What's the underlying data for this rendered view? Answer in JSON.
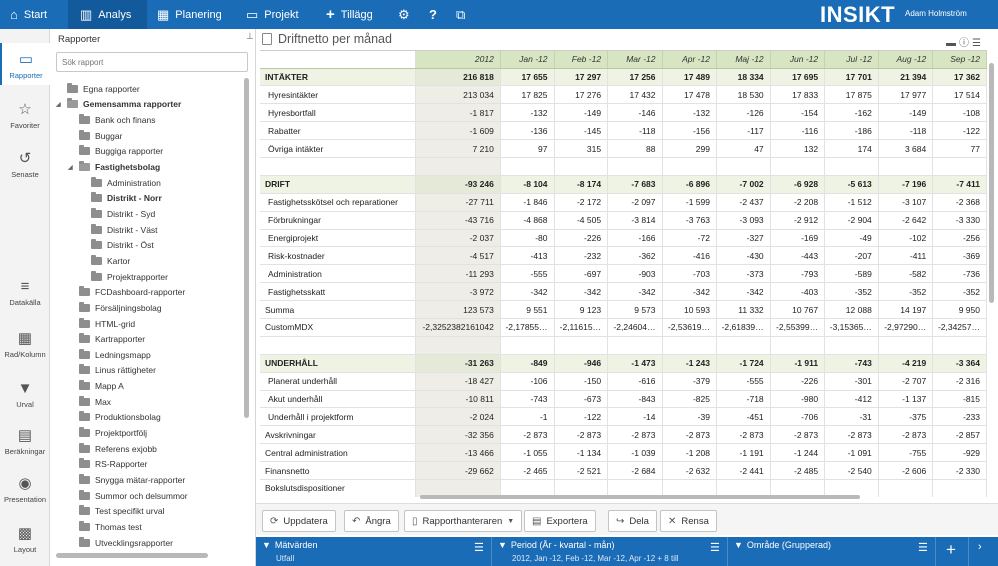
{
  "nav": {
    "start": "Start",
    "analys": "Analys",
    "planering": "Planering",
    "projekt": "Projekt",
    "tillagg": "Tillägg",
    "logo": "INSIKT",
    "user": "Adam Holmström"
  },
  "rail": {
    "rapporter": "Rapporter",
    "favoriter": "Favoriter",
    "senaste": "Senaste",
    "datakalla": "Datakälla",
    "rad_kolumn": "Rad/Kolumn",
    "urval": "Urval",
    "berakningar": "Beräkningar",
    "presentation": "Presentation",
    "layout": "Layout"
  },
  "tree": {
    "title": "Rapporter",
    "search_placeholder": "Sök rapport",
    "items": [
      {
        "label": "Egna rapporter",
        "level": 1,
        "bold": false,
        "open": false
      },
      {
        "label": "Gemensamma rapporter",
        "level": 1,
        "bold": true,
        "open": true
      },
      {
        "label": "Bank och finans",
        "level": 2,
        "bold": false,
        "open": false
      },
      {
        "label": "Buggar",
        "level": 2,
        "bold": false,
        "open": false
      },
      {
        "label": "Buggiga rapporter",
        "level": 2,
        "bold": false,
        "open": false
      },
      {
        "label": "Fastighetsbolag",
        "level": 2,
        "bold": true,
        "open": true
      },
      {
        "label": "Administration",
        "level": 3,
        "bold": false,
        "open": false
      },
      {
        "label": "Distrikt - Norr",
        "level": 3,
        "bold": true,
        "open": false
      },
      {
        "label": "Distrikt - Syd",
        "level": 3,
        "bold": false,
        "open": false
      },
      {
        "label": "Distrikt - Väst",
        "level": 3,
        "bold": false,
        "open": false
      },
      {
        "label": "Distrikt - Öst",
        "level": 3,
        "bold": false,
        "open": false
      },
      {
        "label": "Kartor",
        "level": 3,
        "bold": false,
        "open": false
      },
      {
        "label": "Projektrapporter",
        "level": 3,
        "bold": false,
        "open": false
      },
      {
        "label": "FCDashboard-rapporter",
        "level": 2,
        "bold": false,
        "open": false
      },
      {
        "label": "Försäljningsbolag",
        "level": 2,
        "bold": false,
        "open": false
      },
      {
        "label": "HTML-grid",
        "level": 2,
        "bold": false,
        "open": false
      },
      {
        "label": "Kartrapporter",
        "level": 2,
        "bold": false,
        "open": false
      },
      {
        "label": "Ledningsmapp",
        "level": 2,
        "bold": false,
        "open": false
      },
      {
        "label": "Linus rättigheter",
        "level": 2,
        "bold": false,
        "open": false
      },
      {
        "label": "Mapp A",
        "level": 2,
        "bold": false,
        "open": false
      },
      {
        "label": "Max",
        "level": 2,
        "bold": false,
        "open": false
      },
      {
        "label": "Produktionsbolag",
        "level": 2,
        "bold": false,
        "open": false
      },
      {
        "label": "Projektportfölj",
        "level": 2,
        "bold": false,
        "open": false
      },
      {
        "label": "Referens exjobb",
        "level": 2,
        "bold": false,
        "open": false
      },
      {
        "label": "RS-Rapporter",
        "level": 2,
        "bold": false,
        "open": false
      },
      {
        "label": "Snygga mätar-rapporter",
        "level": 2,
        "bold": false,
        "open": false
      },
      {
        "label": "Summor och delsummor",
        "level": 2,
        "bold": false,
        "open": false
      },
      {
        "label": "Test specifikt urval",
        "level": 2,
        "bold": false,
        "open": false
      },
      {
        "label": "Thomas test",
        "level": 2,
        "bold": false,
        "open": false
      },
      {
        "label": "Utvecklingsrapporter",
        "level": 2,
        "bold": false,
        "open": false
      }
    ]
  },
  "report": {
    "title": "Driftnetto per månad",
    "columns": [
      "2012",
      "Jan -12",
      "Feb -12",
      "Mar -12",
      "Apr -12",
      "Maj -12",
      "Jun -12",
      "Jul -12",
      "Aug -12",
      "Sep -12"
    ],
    "rows": [
      {
        "label": "INTÄKTER",
        "type": "section",
        "values": [
          "216 818",
          "17 655",
          "17 297",
          "17 256",
          "17 489",
          "18 334",
          "17 695",
          "17 701",
          "21 394",
          "17 362"
        ]
      },
      {
        "label": "Hyresintäkter",
        "type": "item",
        "values": [
          "213 034",
          "17 825",
          "17 276",
          "17 432",
          "17 478",
          "18 530",
          "17 833",
          "17 875",
          "17 977",
          "17 514"
        ]
      },
      {
        "label": "Hyresbortfall",
        "type": "item",
        "values": [
          "-1 817",
          "-132",
          "-149",
          "-146",
          "-132",
          "-126",
          "-154",
          "-162",
          "-149",
          "-108"
        ]
      },
      {
        "label": "Rabatter",
        "type": "item",
        "values": [
          "-1 609",
          "-136",
          "-145",
          "-118",
          "-156",
          "-117",
          "-116",
          "-186",
          "-118",
          "-122"
        ]
      },
      {
        "label": "Övriga intäkter",
        "type": "item",
        "values": [
          "7 210",
          "97",
          "315",
          "88",
          "299",
          "47",
          "132",
          "174",
          "3 684",
          "77"
        ]
      },
      {
        "label": "",
        "type": "empty",
        "values": [
          "",
          "",
          "",
          "",
          "",
          "",
          "",
          "",
          "",
          ""
        ]
      },
      {
        "label": "DRIFT",
        "type": "section",
        "values": [
          "-93 246",
          "-8 104",
          "-8 174",
          "-7 683",
          "-6 896",
          "-7 002",
          "-6 928",
          "-5 613",
          "-7 196",
          "-7 411"
        ]
      },
      {
        "label": "Fastighetsskötsel och reparationer",
        "type": "item",
        "values": [
          "-27 711",
          "-1 846",
          "-2 172",
          "-2 097",
          "-1 599",
          "-2 437",
          "-2 208",
          "-1 512",
          "-3 107",
          "-2 368"
        ]
      },
      {
        "label": "Förbrukningar",
        "type": "item",
        "values": [
          "-43 716",
          "-4 868",
          "-4 505",
          "-3 814",
          "-3 763",
          "-3 093",
          "-2 912",
          "-2 904",
          "-2 642",
          "-3 330"
        ]
      },
      {
        "label": "Energiprojekt",
        "type": "item",
        "values": [
          "-2 037",
          "-80",
          "-226",
          "-166",
          "-72",
          "-327",
          "-169",
          "-49",
          "-102",
          "-256"
        ]
      },
      {
        "label": "Risk-kostnader",
        "type": "item",
        "values": [
          "-4 517",
          "-413",
          "-232",
          "-362",
          "-416",
          "-430",
          "-443",
          "-207",
          "-411",
          "-369"
        ]
      },
      {
        "label": "Administration",
        "type": "item",
        "values": [
          "-11 293",
          "-555",
          "-697",
          "-903",
          "-703",
          "-373",
          "-793",
          "-589",
          "-582",
          "-736"
        ]
      },
      {
        "label": "Fastighetsskatt",
        "type": "item",
        "values": [
          "-3 972",
          "-342",
          "-342",
          "-342",
          "-342",
          "-342",
          "-403",
          "-352",
          "-352",
          "-352"
        ]
      },
      {
        "label": "Summa",
        "type": "total",
        "values": [
          "123 573",
          "9 551",
          "9 123",
          "9 573",
          "10 593",
          "11 332",
          "10 767",
          "12 088",
          "14 197",
          "9 950"
        ]
      },
      {
        "label": "CustomMDX",
        "type": "total",
        "values": [
          "-2,3252382161042",
          "-2,17855…",
          "-2,11615…",
          "-2,24604…",
          "-2,53619…",
          "-2,61839…",
          "-2,55399…",
          "-3,15365…",
          "-2,97290…",
          "-2,34257…"
        ]
      },
      {
        "label": "",
        "type": "empty",
        "values": [
          "",
          "",
          "",
          "",
          "",
          "",
          "",
          "",
          "",
          ""
        ]
      },
      {
        "label": "UNDERHÅLL",
        "type": "section",
        "values": [
          "-31 263",
          "-849",
          "-946",
          "-1 473",
          "-1 243",
          "-1 724",
          "-1 911",
          "-743",
          "-4 219",
          "-3 364"
        ]
      },
      {
        "label": "Planerat underhåll",
        "type": "item",
        "values": [
          "-18 427",
          "-106",
          "-150",
          "-616",
          "-379",
          "-555",
          "-226",
          "-301",
          "-2 707",
          "-2 316"
        ]
      },
      {
        "label": "Akut underhåll",
        "type": "item",
        "values": [
          "-10 811",
          "-743",
          "-673",
          "-843",
          "-825",
          "-718",
          "-980",
          "-412",
          "-1 137",
          "-815"
        ]
      },
      {
        "label": "Underhåll i projektform",
        "type": "item",
        "values": [
          "-2 024",
          "-1",
          "-122",
          "-14",
          "-39",
          "-451",
          "-706",
          "-31",
          "-375",
          "-233"
        ]
      },
      {
        "label": "Avskrivningar",
        "type": "total",
        "values": [
          "-32 356",
          "-2 873",
          "-2 873",
          "-2 873",
          "-2 873",
          "-2 873",
          "-2 873",
          "-2 873",
          "-2 873",
          "-2 857"
        ]
      },
      {
        "label": "Central administration",
        "type": "total",
        "values": [
          "-13 466",
          "-1 055",
          "-1 134",
          "-1 039",
          "-1 208",
          "-1 191",
          "-1 244",
          "-1 091",
          "-755",
          "-929"
        ]
      },
      {
        "label": "Finansnetto",
        "type": "total",
        "values": [
          "-29 662",
          "-2 465",
          "-2 521",
          "-2 684",
          "-2 632",
          "-2 441",
          "-2 485",
          "-2 540",
          "-2 606",
          "-2 330"
        ]
      },
      {
        "label": "Bokslutsdispositioner",
        "type": "total",
        "values": [
          "",
          "",
          "",
          "",
          "",
          "",
          "",
          "",
          "",
          ""
        ]
      }
    ]
  },
  "toolbar": {
    "uppdatera": "Uppdatera",
    "angra": "Ångra",
    "rapporthanteraren": "Rapporthanteraren",
    "exportera": "Exportera",
    "dela": "Dela",
    "rensa": "Rensa"
  },
  "filters": {
    "matvarden_title": "Mätvärden",
    "matvarden_value": "Utfall",
    "period_title": "Period (År - kvartal - mån)",
    "period_value": "2012, Jan -12, Feb -12, Mar -12, Apr -12 + 8 till",
    "omrade_title": "Område (Grupperad)"
  },
  "colors": {
    "brand": "#1a6cb6",
    "header_green": "#d8e5c2"
  }
}
